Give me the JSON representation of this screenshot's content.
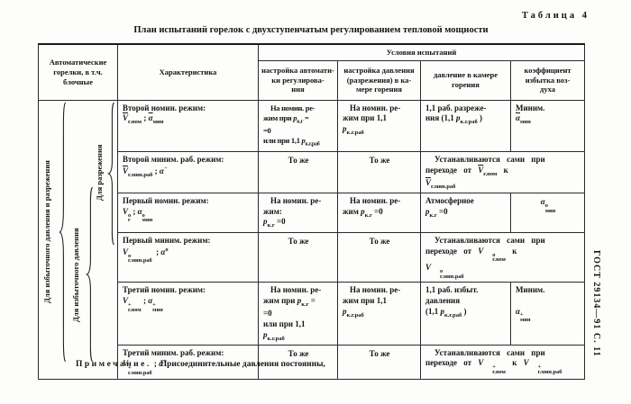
{
  "page": {
    "table_label": "Таблица 4",
    "title": "План испытаний горелок с двухступенчатым регулированием тепловой мощности",
    "note_label": "Примечание.",
    "note_text": "Присоединительные давления постоянны,",
    "gost_label": "ГОСТ 29134—91 С. 11"
  },
  "header": {
    "col_burners": "Автоматические<br>горелки, в т.ч.<br>блочные",
    "col_characteristic": "Характеристика",
    "conditions": "Условия испытаний",
    "sub": [
      "настройка автомати-<br>ки регулирова-<br>ния",
      "настройка давления<br>(разрежения) в ка-<br>мере горения",
      "давление в камере<br>горения",
      "коэффициент<br>избытка воз-<br>духа"
    ]
  },
  "groups": {
    "outer": "Для избыточного давления и разрежения",
    "middle": "Для избыточного давления",
    "inner": "Для разрежения"
  },
  "rows": [
    {
      "ch": "Второй номин. режим:<br><i class='ov'>V</i><sub>г.ном</sub> ; <i class='ov'>α</i><sub>мин</sub>",
      "c3": "На номин. ре-<br>жим при <i>p</i><sub>к.г</sub> =<br>=0<br>или при 1,1 <i>p</i><sub>к.г.раб</sub>",
      "c4": "На номин. ре-<br>жим при 1,1<br><i>p</i><sub>к.г.раб</sub>",
      "c5": "1,1 раб. разреже-<br>ния (1,1 <i>p</i><sub>к.г.раб</sub> )",
      "c6": "Миним.<br><i class='ov'>α</i><sub>мин</sub>"
    },
    {
      "ch": "Второй миним. раб. режим:<br><i class='ov'>V</i><sub>г.мин.раб</sub> ; <i>α</i><sup>−</sup>",
      "c3": "То же",
      "c4": "То же",
      "merged": "Устанавливаются сами при<br>переходе от <i class='ov'>V</i><sub>г.ном</sub> к<br><i class='ov'>V</i><sub>г.мин.раб</sub>"
    },
    {
      "ch": "Первый номин. режим:<br><i>V</i><span class='st'><span>о</span><span>г</span></span> ; <i>α</i><span class='st'><span>о</span><span>мин</span></span>",
      "c3": "На номин. ре-<br>жим:<br><i>p</i><sub>к.г</sub> =0",
      "c4": "На номин. ре-<br>жим <i>p</i><sub>к.г</sub> =0",
      "c5": "Атмосферное<br><i>p</i><sub>к.г</sub> =0",
      "c6": "<i>α</i><span class='st'><span>о</span><span>мин</span></span>"
    },
    {
      "ch": "Первый миним. режим:<br><i>V</i><span class='st'><span>о</span><span>г.мин.раб</span></span> &nbsp;; <i>α</i><sup>о</sup>",
      "c3": "То же",
      "c4": "То же",
      "merged": "Устанавливаются сами при<br>переходе от <i>V</i><span class='st'><span>о</span><span>г.ном</span></span> к<br><i>V</i><span class='st'><span>о</span><span>г.мин.раб</span></span>"
    },
    {
      "ch": "Третий номин. режим:<br><i>V</i><span class='st'><span>+</span><span>г.ном</span></span> ; <i>α</i><span class='st'><span>+</span><span>мин</span></span>",
      "c3": "На номин. ре-<br>жим при <i>p</i><sub>к.г</sub> =<br>=0<br>или при 1,1<br><i>p</i><sub>к.г.раб</sub>",
      "c4": "На номин. ре-<br>жим при 1,1<br><i>p</i><sub>к.г.раб</sub>",
      "c5": "1,1 раб. избыт.<br>давления<br>(1,1 <i>p</i><sub>к.г.раб</sub> )",
      "c6": "Миним.<br><br><i>α</i><span class='st'><span>+</span><span>мин</span></span>"
    },
    {
      "ch": "Третий миним. раб. режим:<br><i>V</i><span class='st'><span>+</span><span>г.мин.раб</span></span> ; <i>α</i><sup>+</sup>",
      "c3": "То же",
      "c4": "То же",
      "merged": "Устанавливаются сами при<br>переходе от <i>V</i><span class='st'><span>+</span><span>г.ном</span></span> к <i>V</i><span class='st'><span>+</span><span>г.мин.раб</span></span>"
    }
  ]
}
